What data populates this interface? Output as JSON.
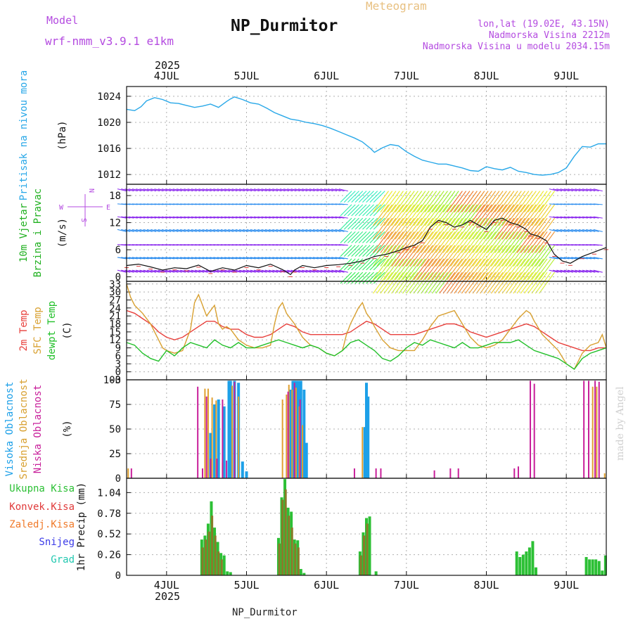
{
  "header": {
    "model_label": "Model",
    "model_name": "wrf-nmm_v3.9.1 e1km",
    "app_title": "Meteogram",
    "station": "NP_Durmitor",
    "lonlat": "lon,lat (19.02E, 43.15N)",
    "elevation": "Nadmorska Visina 2212m",
    "model_elevation": "Nadmorska Visina u modelu 2034.15m",
    "footer_station": "NP_Durmitor",
    "credit": "made by Angel",
    "year_top": "2025",
    "year_bottom": "2025"
  },
  "colors": {
    "pressure": "#29a8e8",
    "temp2m": "#e8403c",
    "sfc_temp": "#d8a030",
    "dewpt": "#22c02a",
    "high_cloud": "#1da0e8",
    "mid_cloud": "#e0a030",
    "low_cloud": "#c81f9a",
    "total_precip": "#2cc035",
    "conv_precip": "#e03a3a",
    "freezing_precip": "#f07a2a",
    "snow": "#3a3ae8",
    "graupel": "#22c8b0",
    "wind_label": "#20b020",
    "wind_line": "#111111",
    "credit": "#d8d8d8"
  },
  "chart_data": [
    {
      "type": "line",
      "panel": "pressure",
      "ylabel_lines": [
        "Pritisak na nivou mora",
        "(hPa)"
      ],
      "ylim": [
        1010.5,
        1025.5
      ],
      "yticks": [
        1012,
        1016,
        1020,
        1024
      ],
      "grid": true,
      "x_day_ticks": [
        "4JUL",
        "5JUL",
        "6JUL",
        "7JUL",
        "8JUL",
        "9JUL"
      ],
      "x_start": 3.5,
      "x_end": 9.5,
      "series": [
        {
          "name": "Pritisak na nivou mora",
          "x": [
            3.5,
            3.6,
            3.68,
            3.75,
            3.85,
            3.95,
            4.05,
            4.15,
            4.25,
            4.35,
            4.45,
            4.55,
            4.65,
            4.75,
            4.8,
            4.85,
            4.95,
            5.05,
            5.15,
            5.25,
            5.35,
            5.45,
            5.55,
            5.65,
            5.75,
            5.85,
            5.95,
            6.05,
            6.15,
            6.25,
            6.35,
            6.45,
            6.55,
            6.6,
            6.7,
            6.8,
            6.9,
            7.0,
            7.1,
            7.2,
            7.3,
            7.4,
            7.5,
            7.6,
            7.7,
            7.8,
            7.9,
            8.0,
            8.1,
            8.2,
            8.3,
            8.4,
            8.5,
            8.6,
            8.7,
            8.8,
            8.9,
            9.0,
            9.1,
            9.2,
            9.3,
            9.4,
            9.5
          ],
          "values": [
            1022.0,
            1021.8,
            1022.4,
            1023.3,
            1023.8,
            1023.5,
            1023.0,
            1022.9,
            1022.6,
            1022.3,
            1022.5,
            1022.8,
            1022.3,
            1023.2,
            1023.6,
            1023.9,
            1023.5,
            1023.0,
            1022.8,
            1022.2,
            1021.5,
            1021.0,
            1020.5,
            1020.3,
            1020.0,
            1019.8,
            1019.5,
            1019.1,
            1018.6,
            1018.1,
            1017.6,
            1017.0,
            1016.0,
            1015.4,
            1016.1,
            1016.6,
            1016.4,
            1015.5,
            1014.8,
            1014.2,
            1013.9,
            1013.6,
            1013.6,
            1013.3,
            1013.0,
            1012.6,
            1012.5,
            1013.2,
            1012.9,
            1012.7,
            1013.1,
            1012.5,
            1012.3,
            1012.0,
            1011.9,
            1012.0,
            1012.3,
            1013.0,
            1014.8,
            1016.3,
            1016.2,
            1016.7,
            1016.7
          ]
        }
      ]
    },
    {
      "type": "line",
      "panel": "wind",
      "ylabel_lines": [
        "10m Vjetar",
        "Brzina i Pravac",
        "(m/s)"
      ],
      "direction_legend": [
        "N",
        "W",
        "E",
        "S"
      ],
      "ylim": [
        -1,
        20.5
      ],
      "yticks": [
        0,
        6,
        12,
        18
      ],
      "grid": true,
      "series": [
        {
          "name": "10m Vjetar",
          "x": [
            3.5,
            3.65,
            3.8,
            3.95,
            4.1,
            4.25,
            4.4,
            4.55,
            4.7,
            4.85,
            5.0,
            5.15,
            5.3,
            5.45,
            5.55,
            5.6,
            5.7,
            5.85,
            6.0,
            6.15,
            6.3,
            6.45,
            6.6,
            6.75,
            6.9,
            7.0,
            7.1,
            7.2,
            7.3,
            7.4,
            7.5,
            7.6,
            7.7,
            7.8,
            7.9,
            8.0,
            8.1,
            8.2,
            8.3,
            8.4,
            8.5,
            8.55,
            8.65,
            8.75,
            8.85,
            8.95,
            9.05,
            9.2,
            9.35,
            9.5
          ],
          "values": [
            2.5,
            2.8,
            2.2,
            1.5,
            2.0,
            1.8,
            2.6,
            1.2,
            2.0,
            1.5,
            2.5,
            2.0,
            2.8,
            1.6,
            0.5,
            1.5,
            2.5,
            2.0,
            2.5,
            2.7,
            3.0,
            3.5,
            4.5,
            5.0,
            5.8,
            6.5,
            7.0,
            8.0,
            11.0,
            12.5,
            12.0,
            11.0,
            11.5,
            12.5,
            11.5,
            10.5,
            12.5,
            13.0,
            12.0,
            11.5,
            10.5,
            9.5,
            9.0,
            8.0,
            5.0,
            3.5,
            3.0,
            4.5,
            5.5,
            6.5
          ]
        }
      ]
    },
    {
      "type": "line",
      "panel": "temperature",
      "ylabel_lines": [
        "2m Temp",
        "SFC Temp",
        "dewpt Temp",
        "(C)"
      ],
      "ylim": [
        -3,
        34
      ],
      "yticks": [
        -3,
        0,
        3,
        6,
        9,
        12,
        15,
        18,
        21,
        24,
        27,
        30,
        33
      ],
      "grid": true,
      "series": [
        {
          "name": "2m Temp",
          "x": [
            3.5,
            3.6,
            3.7,
            3.8,
            3.9,
            4.0,
            4.1,
            4.2,
            4.3,
            4.4,
            4.5,
            4.6,
            4.7,
            4.8,
            4.9,
            5.0,
            5.1,
            5.2,
            5.3,
            5.4,
            5.5,
            5.6,
            5.7,
            5.8,
            5.9,
            6.0,
            6.1,
            6.2,
            6.3,
            6.4,
            6.5,
            6.6,
            6.7,
            6.8,
            6.9,
            7.0,
            7.1,
            7.2,
            7.3,
            7.4,
            7.5,
            7.6,
            7.7,
            7.8,
            7.9,
            8.0,
            8.1,
            8.2,
            8.3,
            8.4,
            8.5,
            8.6,
            8.7,
            8.8,
            8.9,
            9.0,
            9.1,
            9.2,
            9.3,
            9.4,
            9.5
          ],
          "values": [
            23,
            22,
            20,
            18,
            15,
            13,
            12,
            13,
            15,
            17,
            19,
            19,
            17,
            16,
            16,
            14,
            13,
            13,
            14,
            16,
            18,
            17,
            15,
            14,
            14,
            14,
            14,
            14,
            15,
            17,
            19,
            18,
            16,
            14,
            14,
            14,
            14,
            15,
            16,
            17,
            18,
            18,
            17,
            15,
            14,
            13,
            14,
            15,
            16,
            17,
            18,
            17,
            15,
            13,
            11,
            10,
            9,
            8,
            8,
            9,
            9
          ]
        },
        {
          "name": "SFC Temp",
          "x": [
            3.5,
            3.55,
            3.6,
            3.7,
            3.8,
            3.9,
            3.95,
            4.0,
            4.1,
            4.2,
            4.3,
            4.35,
            4.4,
            4.5,
            4.55,
            4.6,
            4.65,
            4.7,
            4.75,
            4.8,
            4.9,
            5.0,
            5.1,
            5.2,
            5.3,
            5.35,
            5.4,
            5.45,
            5.5,
            5.55,
            5.6,
            5.7,
            5.8,
            5.9,
            6.0,
            6.1,
            6.2,
            6.25,
            6.3,
            6.4,
            6.45,
            6.5,
            6.55,
            6.6,
            6.7,
            6.8,
            6.9,
            7.0,
            7.1,
            7.2,
            7.3,
            7.4,
            7.5,
            7.6,
            7.7,
            7.8,
            7.9,
            8.0,
            8.1,
            8.2,
            8.3,
            8.4,
            8.5,
            8.55,
            8.6,
            8.7,
            8.8,
            8.9,
            9.0,
            9.05,
            9.1,
            9.2,
            9.3,
            9.4,
            9.45,
            9.5
          ],
          "values": [
            33,
            28,
            25,
            22,
            18,
            12,
            9,
            8,
            7,
            8,
            16,
            26,
            29,
            21,
            23,
            25,
            18,
            16,
            17,
            16,
            12,
            10,
            9,
            9,
            10,
            18,
            24,
            26,
            22,
            20,
            18,
            13,
            10,
            9,
            7,
            6,
            8,
            14,
            18,
            24,
            26,
            22,
            20,
            17,
            12,
            9,
            8,
            8,
            8,
            12,
            17,
            21,
            22,
            23,
            18,
            13,
            10,
            9,
            10,
            12,
            16,
            20,
            23,
            22,
            19,
            14,
            11,
            8,
            3,
            2,
            1,
            7,
            10,
            11,
            14,
            9
          ]
        },
        {
          "name": "dewpt Temp",
          "x": [
            3.5,
            3.6,
            3.7,
            3.8,
            3.9,
            4.0,
            4.1,
            4.2,
            4.3,
            4.4,
            4.5,
            4.6,
            4.7,
            4.8,
            4.9,
            5.0,
            5.1,
            5.2,
            5.3,
            5.4,
            5.5,
            5.6,
            5.7,
            5.8,
            5.9,
            6.0,
            6.1,
            6.2,
            6.3,
            6.4,
            6.5,
            6.6,
            6.7,
            6.8,
            6.9,
            7.0,
            7.1,
            7.2,
            7.3,
            7.4,
            7.5,
            7.6,
            7.7,
            7.8,
            7.9,
            8.0,
            8.1,
            8.2,
            8.3,
            8.4,
            8.5,
            8.6,
            8.7,
            8.8,
            8.9,
            9.0,
            9.1,
            9.2,
            9.3,
            9.4,
            9.5
          ],
          "values": [
            11,
            10,
            7,
            5,
            4,
            8,
            6,
            9,
            11,
            10,
            9,
            12,
            10,
            9,
            11,
            9,
            9,
            10,
            11,
            12,
            11,
            10,
            9,
            10,
            9,
            7,
            6,
            8,
            11,
            12,
            10,
            8,
            5,
            4,
            6,
            9,
            11,
            10,
            12,
            11,
            10,
            9,
            11,
            9,
            9,
            10,
            11,
            11,
            11,
            12,
            10,
            8,
            7,
            6,
            5,
            3,
            1,
            5,
            7,
            8,
            9
          ]
        }
      ]
    },
    {
      "type": "bar",
      "panel": "cloud",
      "ylabel_lines": [
        "Visoka Oblacnost",
        "Srednja Oblacnost",
        "Niska Oblacnost",
        "(%)"
      ],
      "ylim": [
        0,
        100
      ],
      "yticks": [
        0,
        25,
        50,
        75,
        100
      ],
      "grid": true,
      "series": [
        {
          "name": "Visoka Oblacnost",
          "x": [
            4.55,
            4.6,
            4.65,
            4.72,
            4.78,
            4.8,
            4.85,
            4.9,
            4.95,
            5.0,
            5.55,
            5.58,
            5.6,
            5.62,
            5.65,
            5.68,
            5.72,
            5.75,
            6.48,
            6.5,
            6.52
          ],
          "values": [
            46,
            75,
            80,
            73,
            99,
            99,
            99,
            97,
            17,
            7,
            90,
            99,
            99,
            99,
            99,
            99,
            90,
            36,
            52,
            97,
            83
          ]
        },
        {
          "name": "Srednja Oblacnost",
          "x": [
            3.52,
            4.48,
            4.52,
            4.57,
            4.62,
            4.7,
            4.82,
            4.9,
            5.45,
            5.5,
            5.53,
            5.57,
            5.62,
            5.66,
            5.7,
            6.45,
            9.33,
            9.38,
            9.48
          ],
          "values": [
            10,
            91,
            91,
            82,
            79,
            16,
            94,
            83,
            80,
            85,
            95,
            90,
            92,
            73,
            54,
            52,
            93,
            93,
            5
          ]
        },
        {
          "name": "Niska Oblacnost",
          "x": [
            3.56,
            4.39,
            4.45,
            4.5,
            4.55,
            4.63,
            4.7,
            4.75,
            4.85,
            5.52,
            5.6,
            5.67,
            6.35,
            6.62,
            6.68,
            7.35,
            7.55,
            7.65,
            8.35,
            8.4,
            8.55,
            8.6,
            9.22,
            9.28,
            9.36,
            9.41
          ],
          "values": [
            10,
            93,
            10,
            83,
            20,
            20,
            80,
            18,
            98,
            88,
            97,
            80,
            10,
            10,
            10,
            8,
            10,
            10,
            10,
            12,
            99,
            96,
            99,
            99,
            99,
            98
          ]
        }
      ]
    },
    {
      "type": "bar",
      "panel": "precipitation",
      "ylabel_lines": [
        "1hr Precip (mm)"
      ],
      "legend": [
        "Ukupna Kisa",
        "Konvek.Kisa",
        "Zaledj.Kisa",
        "Snijeg",
        "Grad"
      ],
      "ylim": [
        0,
        1.22
      ],
      "yticks": [
        0,
        0.26,
        0.52,
        0.78,
        1.04
      ],
      "grid": true,
      "series": [
        {
          "name": "Ukupna Kisa",
          "x": [
            4.44,
            4.48,
            4.52,
            4.56,
            4.6,
            4.64,
            4.68,
            4.72,
            4.76,
            4.8,
            5.4,
            5.44,
            5.48,
            5.52,
            5.56,
            5.6,
            5.64,
            5.68,
            5.72,
            6.42,
            6.46,
            6.5,
            6.54,
            6.62,
            8.38,
            8.42,
            8.46,
            8.5,
            8.54,
            8.58,
            8.62,
            9.25,
            9.29,
            9.33,
            9.37,
            9.41,
            9.45,
            9.49
          ],
          "values": [
            0.45,
            0.5,
            0.65,
            0.93,
            0.6,
            0.42,
            0.28,
            0.25,
            0.05,
            0.04,
            0.47,
            0.98,
            1.21,
            0.85,
            0.8,
            0.45,
            0.44,
            0.08,
            0.03,
            0.3,
            0.54,
            0.72,
            0.74,
            0.05,
            0.3,
            0.23,
            0.26,
            0.3,
            0.35,
            0.43,
            0.1,
            0.23,
            0.2,
            0.2,
            0.2,
            0.18,
            0.06,
            0.25
          ]
        },
        {
          "name": "Konvek.Kisa",
          "x": [
            4.45,
            4.49,
            4.53,
            4.57,
            4.61,
            4.65,
            4.69,
            5.41,
            5.45,
            5.49,
            5.53,
            5.57,
            5.61,
            5.65,
            6.43,
            6.47,
            6.51
          ],
          "values": [
            0.35,
            0.45,
            0.55,
            0.75,
            0.5,
            0.3,
            0.2,
            0.4,
            0.95,
            1.08,
            0.75,
            0.6,
            0.4,
            0.35,
            0.25,
            0.5,
            0.65
          ]
        }
      ]
    }
  ]
}
